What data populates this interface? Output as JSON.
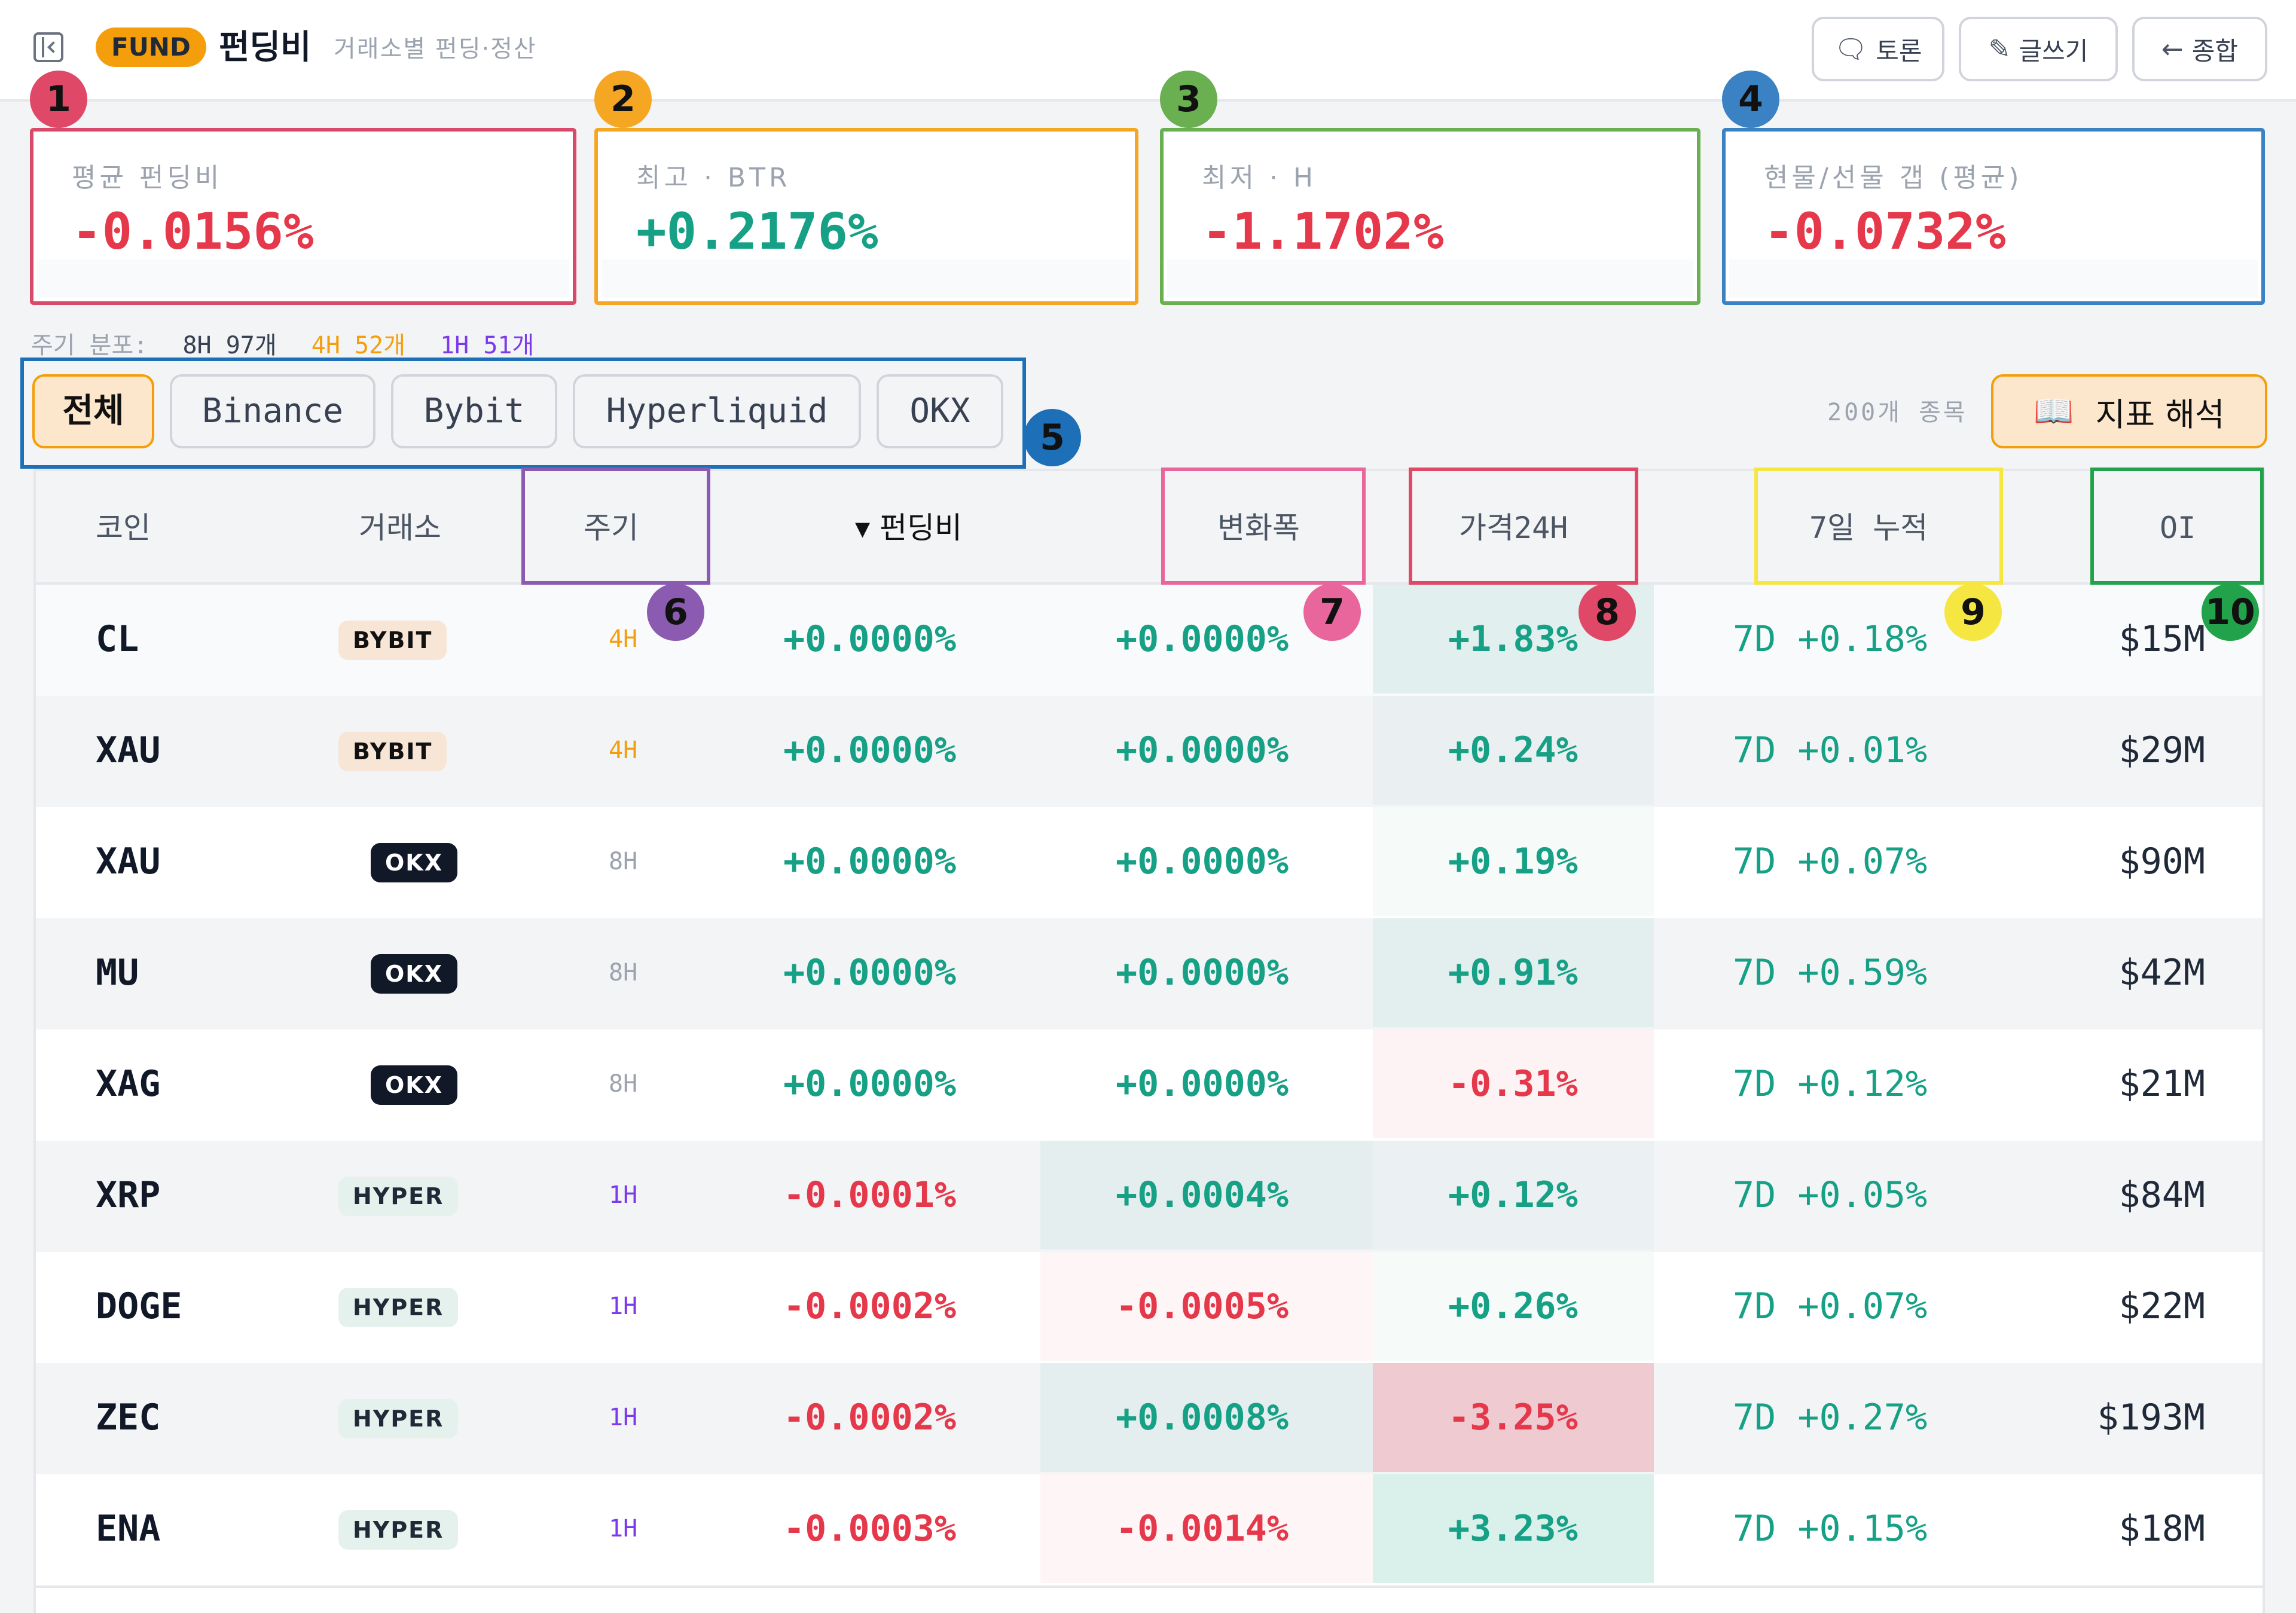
{
  "header": {
    "badge": "FUND",
    "title": "펀딩비",
    "subtitle": "거래소별 펀딩·정산",
    "buttons": [
      {
        "label": "토론",
        "icon": "chat-icon"
      },
      {
        "label": "글쓰기",
        "icon": "pencil-icon"
      },
      {
        "label": "종합",
        "icon": "arrow-left-icon"
      }
    ]
  },
  "stats": [
    {
      "label": "평균 펀딩비",
      "value": "-0.0156%",
      "color": "#e5384b"
    },
    {
      "label": "최고 · BTR",
      "value": "+0.2176%",
      "color": "#16a085"
    },
    {
      "label": "최저 · H",
      "value": "-1.1702%",
      "color": "#e5384b"
    },
    {
      "label": "현물/선물 갭 (평균)",
      "value": "-0.0732%",
      "color": "#e5384b"
    }
  ],
  "markers": [
    "1",
    "2",
    "3",
    "4",
    "5",
    "6",
    "7",
    "8",
    "9",
    "10"
  ],
  "distribution": {
    "label": "주기 분포:",
    "items": [
      {
        "text": "8H 97개",
        "color": "#374151"
      },
      {
        "text": "4H 52개",
        "color": "#f59e0b"
      },
      {
        "text": "1H 51개",
        "color": "#7c3aed"
      }
    ]
  },
  "filters": [
    "전체",
    "Binance",
    "Bybit",
    "Hyperliquid",
    "OKX"
  ],
  "active_filter": "전체",
  "count_text": "200개 종목",
  "guide_button": {
    "icon": "📖",
    "label": "지표 해석"
  },
  "table": {
    "columns": [
      "코인",
      "거래소",
      "주기",
      "▾ 펀딩비",
      "변화폭",
      "가격24H",
      "7일 누적",
      "OI"
    ],
    "rows": [
      {
        "coin": "CL",
        "exchange": "BYBIT",
        "ex_type": "bybit",
        "period": "4H",
        "funding": "+0.0000%",
        "change": "+0.0000%",
        "price24h": "+1.83%",
        "cum7d": "7D +0.18%",
        "oi": "$15M"
      },
      {
        "coin": "XAU",
        "exchange": "BYBIT",
        "ex_type": "bybit",
        "period": "4H",
        "funding": "+0.0000%",
        "change": "+0.0000%",
        "price24h": "+0.24%",
        "cum7d": "7D +0.01%",
        "oi": "$29M"
      },
      {
        "coin": "XAU",
        "exchange": "OKX",
        "ex_type": "okx",
        "period": "8H",
        "funding": "+0.0000%",
        "change": "+0.0000%",
        "price24h": "+0.19%",
        "cum7d": "7D +0.07%",
        "oi": "$90M"
      },
      {
        "coin": "MU",
        "exchange": "OKX",
        "ex_type": "okx",
        "period": "8H",
        "funding": "+0.0000%",
        "change": "+0.0000%",
        "price24h": "+0.91%",
        "cum7d": "7D +0.59%",
        "oi": "$42M"
      },
      {
        "coin": "XAG",
        "exchange": "OKX",
        "ex_type": "okx",
        "period": "8H",
        "funding": "+0.0000%",
        "change": "+0.0000%",
        "price24h": "-0.31%",
        "cum7d": "7D +0.12%",
        "oi": "$21M"
      },
      {
        "coin": "XRP",
        "exchange": "HYPER",
        "ex_type": "hyper",
        "period": "1H",
        "funding": "-0.0001%",
        "change": "+0.0004%",
        "price24h": "+0.12%",
        "cum7d": "7D +0.05%",
        "oi": "$84M"
      },
      {
        "coin": "DOGE",
        "exchange": "HYPER",
        "ex_type": "hyper",
        "period": "1H",
        "funding": "-0.0002%",
        "change": "-0.0005%",
        "price24h": "+0.26%",
        "cum7d": "7D +0.07%",
        "oi": "$22M"
      },
      {
        "coin": "ZEC",
        "exchange": "HYPER",
        "ex_type": "hyper",
        "period": "1H",
        "funding": "-0.0002%",
        "change": "+0.0008%",
        "price24h": "-3.25%",
        "cum7d": "7D +0.27%",
        "oi": "$193M"
      },
      {
        "coin": "ENA",
        "exchange": "HYPER",
        "ex_type": "hyper",
        "period": "1H",
        "funding": "-0.0003%",
        "change": "-0.0014%",
        "price24h": "+3.23%",
        "cum7d": "7D +0.15%",
        "oi": "$18M"
      }
    ]
  }
}
